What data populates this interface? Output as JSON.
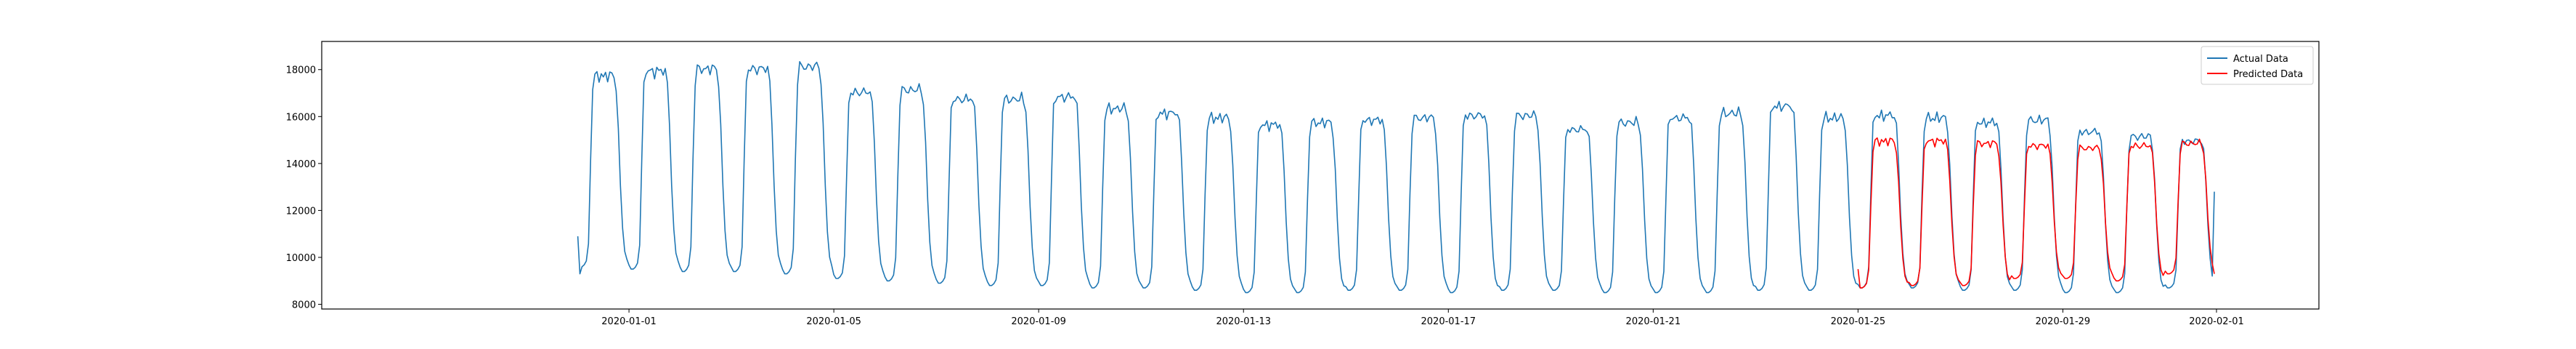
{
  "chart_data": {
    "type": "line",
    "title": "",
    "xlabel": "",
    "ylabel": "",
    "x_range": [
      "2019-12-26",
      "2020-02-03"
    ],
    "ylim": [
      7800,
      19200
    ],
    "x_ticks": [
      "2020-01-01",
      "2020-01-05",
      "2020-01-09",
      "2020-01-13",
      "2020-01-17",
      "2020-01-21",
      "2020-01-25",
      "2020-01-29",
      "2020-02-01"
    ],
    "y_ticks": [
      8000,
      10000,
      12000,
      14000,
      16000,
      18000
    ],
    "grid": false,
    "legend_position": "top-right",
    "series": [
      {
        "name": "Actual Data",
        "color": "#1f77b4",
        "sampling": "hourly",
        "x_start": "2019-12-31 00:00",
        "x_end": "2020-01-31 23:00",
        "daily_pattern": {
          "days": [
            "2019-12-31",
            "2020-01-01",
            "2020-01-02",
            "2020-01-03",
            "2020-01-04",
            "2020-01-05",
            "2020-01-06",
            "2020-01-07",
            "2020-01-08",
            "2020-01-09",
            "2020-01-10",
            "2020-01-11",
            "2020-01-12",
            "2020-01-13",
            "2020-01-14",
            "2020-01-15",
            "2020-01-16",
            "2020-01-17",
            "2020-01-18",
            "2020-01-19",
            "2020-01-20",
            "2020-01-21",
            "2020-01-22",
            "2020-01-23",
            "2020-01-24",
            "2020-01-25",
            "2020-01-26",
            "2020-01-27",
            "2020-01-28",
            "2020-01-29",
            "2020-01-30",
            "2020-01-31"
          ],
          "trough": [
            9600,
            9500,
            9400,
            9400,
            9300,
            9100,
            9000,
            8900,
            8800,
            8800,
            8700,
            8700,
            8600,
            8500,
            8500,
            8600,
            8600,
            8500,
            8600,
            8600,
            8500,
            8500,
            8500,
            8600,
            8600,
            8700,
            8700,
            8600,
            8600,
            8500,
            8500,
            8700
          ],
          "plateau": [
            17800,
            18000,
            18100,
            18100,
            18200,
            17100,
            17200,
            16800,
            16800,
            16900,
            16400,
            16200,
            16000,
            15700,
            15800,
            15900,
            16000,
            16100,
            16100,
            15500,
            15800,
            16000,
            16200,
            16500,
            16000,
            16100,
            16000,
            15800,
            15900,
            15400,
            15200,
            15000
          ],
          "end_values": {
            "2019-12-31 00:00": 10900,
            "2019-12-31 01:00": 9300,
            "2020-01-31 23:00": 12800
          }
        }
      },
      {
        "name": "Predicted Data",
        "color": "#ff0000",
        "sampling": "hourly",
        "x_start": "2020-01-25 00:00",
        "x_end": "2020-01-31 23:00",
        "daily_pattern": {
          "days": [
            "2020-01-25",
            "2020-01-26",
            "2020-01-27",
            "2020-01-28",
            "2020-01-29",
            "2020-01-30",
            "2020-01-31"
          ],
          "trough": [
            8700,
            8800,
            8800,
            9100,
            9100,
            9000,
            9300
          ],
          "plateau": [
            15000,
            15000,
            14900,
            14800,
            14700,
            14800,
            14900
          ],
          "end_values": {
            "2020-01-25 00:00": 9500,
            "2020-01-31 23:00": 9300
          }
        }
      }
    ]
  }
}
